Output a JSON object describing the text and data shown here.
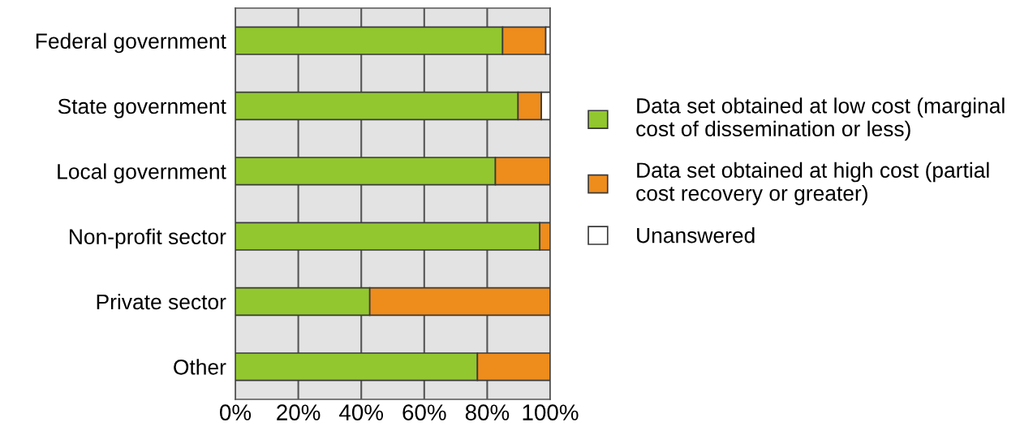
{
  "chart_data": {
    "type": "bar",
    "orientation": "horizontal",
    "stacked": true,
    "categories": [
      "Federal government",
      "State government",
      "Local government",
      "Non-profit sector",
      "Private sector",
      "Other"
    ],
    "series": [
      {
        "name": "Data set obtained at low cost (marginal cost of dissemination or less)",
        "color": "#92c72f",
        "values": [
          84.9,
          89.8,
          82.6,
          96.7,
          42.7,
          76.9
        ]
      },
      {
        "name": "Data set obtained at high cost (partial cost recovery or greater)",
        "color": "#ee8c1c",
        "values": [
          13.7,
          7.4,
          17.4,
          3.3,
          57.3,
          23.1
        ]
      },
      {
        "name": "Unanswered",
        "color": "#ffffff",
        "values": [
          1.4,
          2.8,
          null,
          null,
          null,
          null
        ]
      }
    ],
    "xlim": [
      0,
      100
    ],
    "xticks": [
      {
        "value": 0,
        "label": "0%"
      },
      {
        "value": 20,
        "label": "20%"
      },
      {
        "value": 40,
        "label": "40%"
      },
      {
        "value": 60,
        "label": "60%"
      },
      {
        "value": 80,
        "label": "80%"
      },
      {
        "value": 100,
        "label": "100%"
      }
    ],
    "grid": "x",
    "legend": "right"
  }
}
